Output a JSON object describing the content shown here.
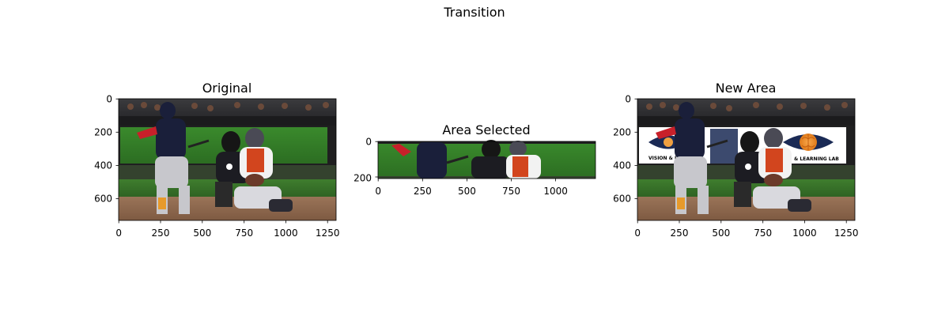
{
  "figure": {
    "suptitle": "Transition"
  },
  "chart_data": [
    {
      "type": "image",
      "title": "Original",
      "x_ticks": [
        0,
        250,
        500,
        750,
        1000,
        1250
      ],
      "y_ticks": [
        0,
        200,
        400,
        600
      ],
      "xlim": [
        0,
        1300
      ],
      "ylim": [
        730,
        0
      ],
      "description": "baseball batter, catcher and umpire with green outfield wall"
    },
    {
      "type": "image",
      "title": "Area Selected",
      "x_ticks": [
        0,
        250,
        500,
        750,
        1000
      ],
      "y_ticks": [
        0,
        200
      ],
      "xlim": [
        0,
        1230
      ],
      "ylim": [
        210,
        0
      ],
      "description": "cropped strip of green wall region"
    },
    {
      "type": "image",
      "title": "New Area",
      "x_ticks": [
        0,
        250,
        500,
        750,
        1000,
        1250
      ],
      "y_ticks": [
        0,
        200,
        400,
        600
      ],
      "xlim": [
        0,
        1300
      ],
      "ylim": [
        730,
        0
      ],
      "overlay_text": [
        "VISION & LE",
        "& LEARNING LAB"
      ],
      "description": "original image with wall replaced by logo banner"
    }
  ]
}
